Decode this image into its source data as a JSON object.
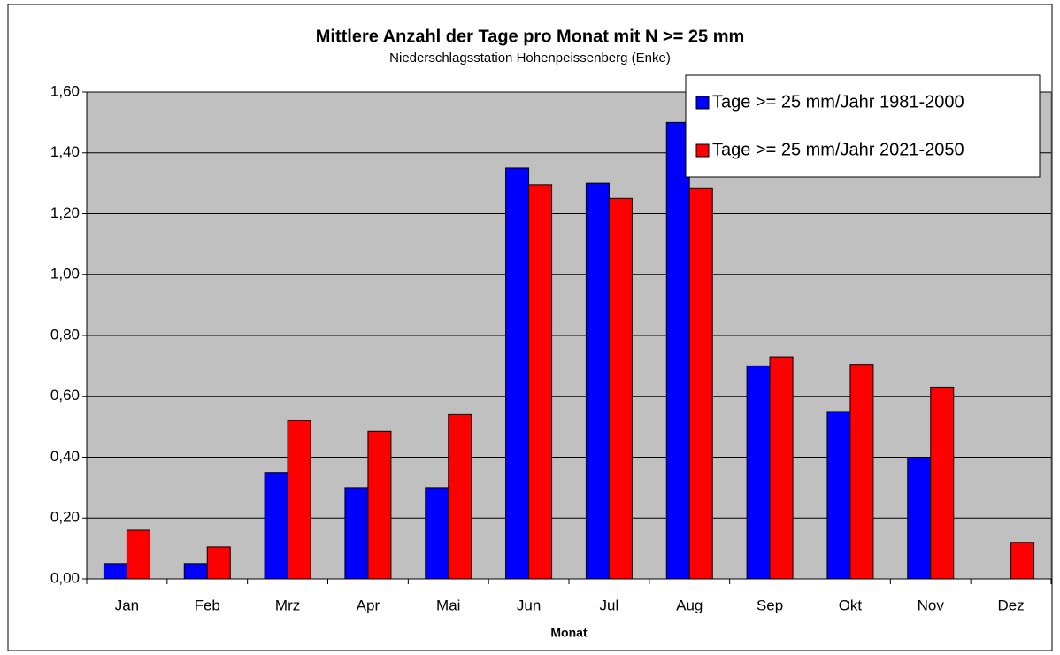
{
  "chart_data": {
    "type": "bar",
    "title": "Mittlere Anzahl der Tage pro Monat mit N >= 25 mm",
    "subtitle": "Niederschlagsstation Hohenpeissenberg (Enke)",
    "x_label": "Monat",
    "categories": [
      "Jan",
      "Feb",
      "Mrz",
      "Apr",
      "Mai",
      "Jun",
      "Jul",
      "Aug",
      "Sep",
      "Okt",
      "Nov",
      "Dez"
    ],
    "series": [
      {
        "name": "Tage >= 25 mm/Jahr 1981-2000",
        "color": "#0000ff",
        "values": [
          0.05,
          0.05,
          0.35,
          0.3,
          0.3,
          1.35,
          1.3,
          1.5,
          0.7,
          0.55,
          0.4,
          0
        ]
      },
      {
        "name": "Tage >= 25 mm/Jahr 2021-2050",
        "color": "#ff0000",
        "values": [
          0.16,
          0.105,
          0.52,
          0.485,
          0.54,
          1.295,
          1.25,
          1.285,
          0.73,
          0.705,
          0.63,
          0.12
        ]
      }
    ],
    "ylim": [
      0,
      1.6
    ],
    "yticks": [
      {
        "value": 0,
        "label": "0,00"
      },
      {
        "value": 0.2,
        "label": "0,20"
      },
      {
        "value": 0.4,
        "label": "0,40"
      },
      {
        "value": 0.6,
        "label": "0,60"
      },
      {
        "value": 0.8,
        "label": "0,80"
      },
      {
        "value": 1,
        "label": "1,00"
      },
      {
        "value": 1.2,
        "label": "1,20"
      },
      {
        "value": 1.4,
        "label": "1,40"
      },
      {
        "value": 1.6,
        "label": "1,60"
      }
    ],
    "grid": true,
    "legend": "top-right"
  }
}
